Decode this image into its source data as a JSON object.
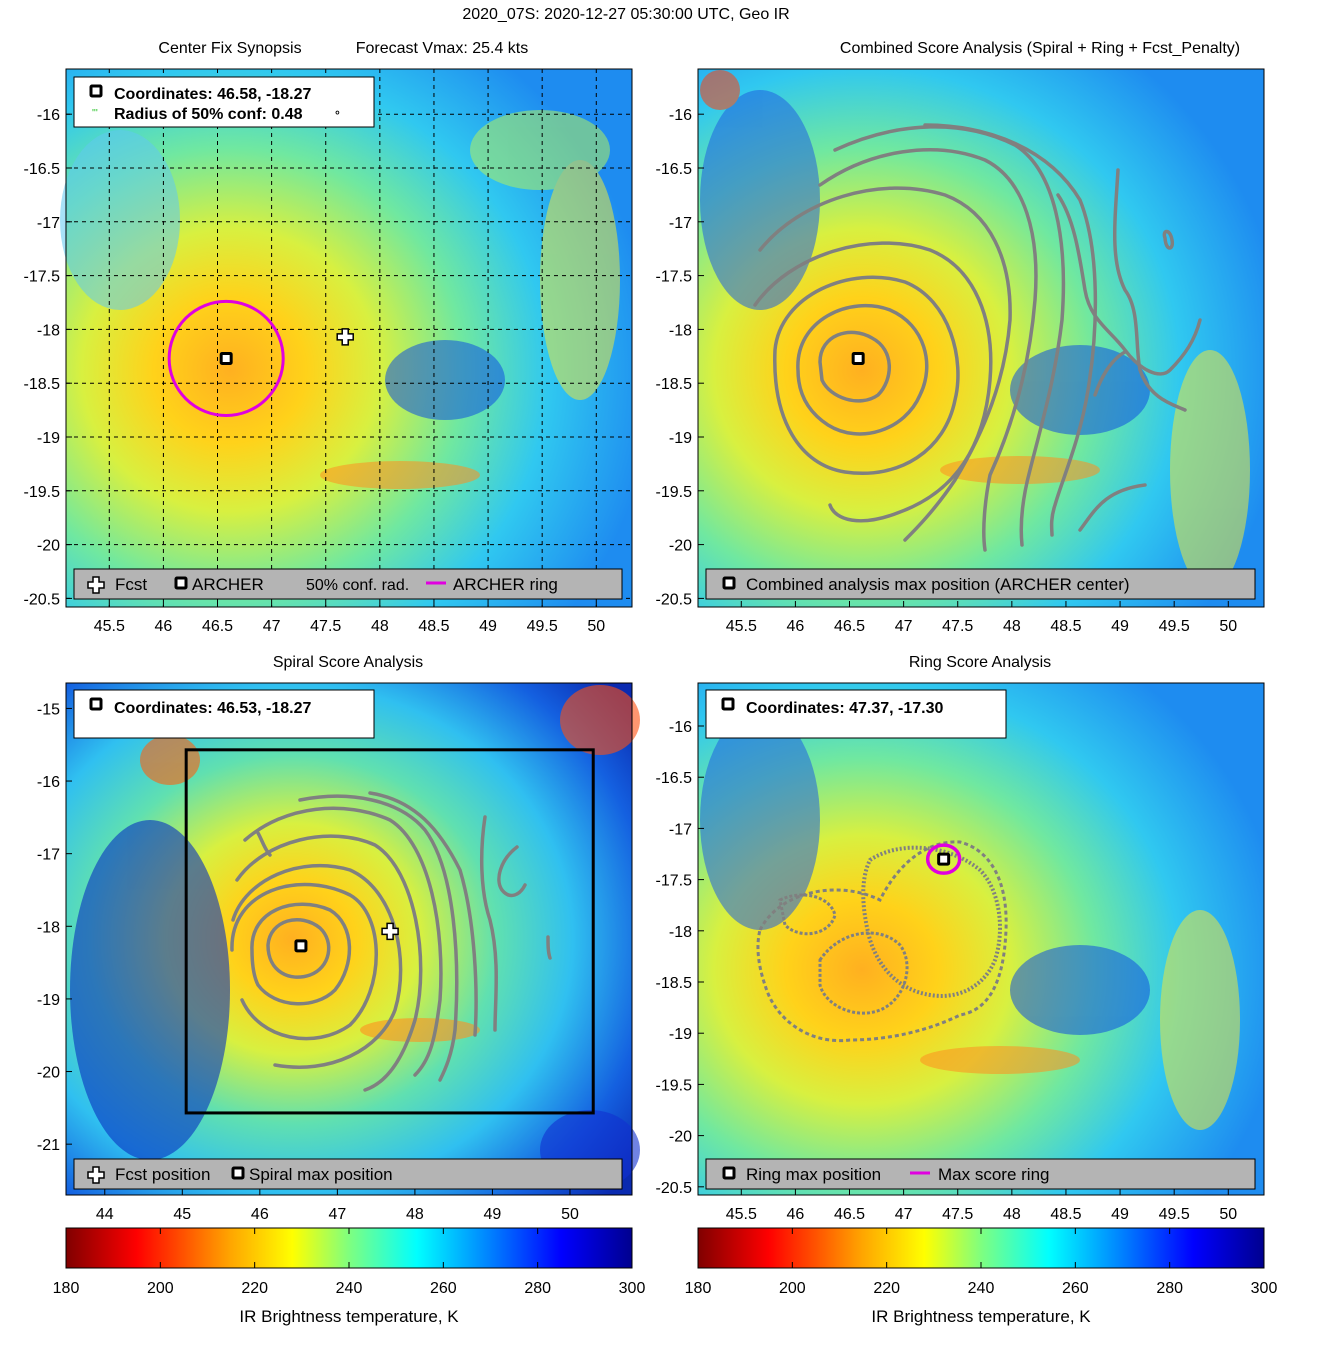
{
  "suptitle": "2020_07S: 2020-12-27 05:30:00 UTC, Geo IR",
  "colors": {
    "archer_ring": "#e000e0",
    "contour": "#808080",
    "legend_bg": "#b4b4b4",
    "grid": "#000000"
  },
  "chart_data": [
    {
      "id": "synopsis",
      "type": "heatmap",
      "title": "Center Fix Synopsis",
      "title_extra": "Forecast Vmax: 25.4 kts",
      "xlim": [
        45.1,
        50.33
      ],
      "ylim": [
        -20.58,
        -15.58
      ],
      "xticks": [
        "45.5",
        "46",
        "46.5",
        "47",
        "47.5",
        "48",
        "48.5",
        "49",
        "49.5",
        "50"
      ],
      "yticks": [
        "-16",
        "-16.5",
        "-17",
        "-17.5",
        "-18",
        "-18.5",
        "-19",
        "-19.5",
        "-20",
        "-20.5"
      ],
      "info_lines": [
        "Coordinates: 46.58, -18.27",
        "Radius of 50% conf: 0.48"
      ],
      "info_deg": "°",
      "archer_center": [
        46.58,
        -18.27
      ],
      "fcst_position": [
        47.68,
        -18.07
      ],
      "ring_radius_deg": 0.53,
      "legend": [
        "Fcst",
        "ARCHER",
        "50% conf. rad.",
        "ARCHER ring"
      ]
    },
    {
      "id": "combined",
      "type": "heatmap",
      "title": "Combined Score Analysis (Spiral + Ring + Fcst_Penalty)",
      "xlim": [
        45.1,
        50.33
      ],
      "ylim": [
        -20.58,
        -15.58
      ],
      "xticks": [
        "45.5",
        "46",
        "46.5",
        "47",
        "47.5",
        "48",
        "48.5",
        "49",
        "49.5",
        "50"
      ],
      "yticks": [
        "-16",
        "-16.5",
        "-17",
        "-17.5",
        "-18",
        "-18.5",
        "-19",
        "-19.5",
        "-20",
        "-20.5"
      ],
      "max_position": [
        46.58,
        -18.27
      ],
      "legend": [
        "Combined analysis max position (ARCHER center)"
      ]
    },
    {
      "id": "spiral",
      "type": "heatmap",
      "title": "Spiral Score Analysis",
      "xlim": [
        43.5,
        50.8
      ],
      "ylim": [
        -21.7,
        -14.65
      ],
      "xticks": [
        "44",
        "45",
        "46",
        "47",
        "48",
        "49",
        "50"
      ],
      "yticks": [
        "-15",
        "-16",
        "-17",
        "-18",
        "-19",
        "-20",
        "-21"
      ],
      "info_lines": [
        "Coordinates: 46.53, -18.27"
      ],
      "max_position": [
        46.53,
        -18.27
      ],
      "fcst_position": [
        47.68,
        -18.07
      ],
      "search_box": {
        "lon": [
          45.05,
          50.3
        ],
        "lat": [
          -20.57,
          -15.57
        ]
      },
      "legend": [
        "Fcst position",
        "Spiral max position"
      ]
    },
    {
      "id": "ring",
      "type": "heatmap",
      "title": "Ring Score Analysis",
      "xlim": [
        45.1,
        50.33
      ],
      "ylim": [
        -20.58,
        -15.58
      ],
      "xticks": [
        "45.5",
        "46",
        "46.5",
        "47",
        "47.5",
        "48",
        "48.5",
        "49",
        "49.5",
        "50"
      ],
      "yticks": [
        "-16",
        "-16.5",
        "-17",
        "-17.5",
        "-18",
        "-18.5",
        "-19",
        "-19.5",
        "-20",
        "-20.5"
      ],
      "info_lines": [
        "Coordinates: 47.37, -17.30"
      ],
      "max_position": [
        47.37,
        -17.3
      ],
      "legend": [
        "Ring max position",
        "Max score ring"
      ]
    },
    {
      "id": "colorbar",
      "type": "colorbar",
      "range": [
        180,
        300
      ],
      "ticks": [
        "180",
        "200",
        "220",
        "240",
        "260",
        "280",
        "300"
      ],
      "label": "IR Brightness temperature, K",
      "stops": [
        "#800000",
        "#ff0000",
        "#ffa500",
        "#ffff00",
        "#7fff7f",
        "#00ffff",
        "#0080ff",
        "#0000ff",
        "#00008f"
      ]
    }
  ]
}
